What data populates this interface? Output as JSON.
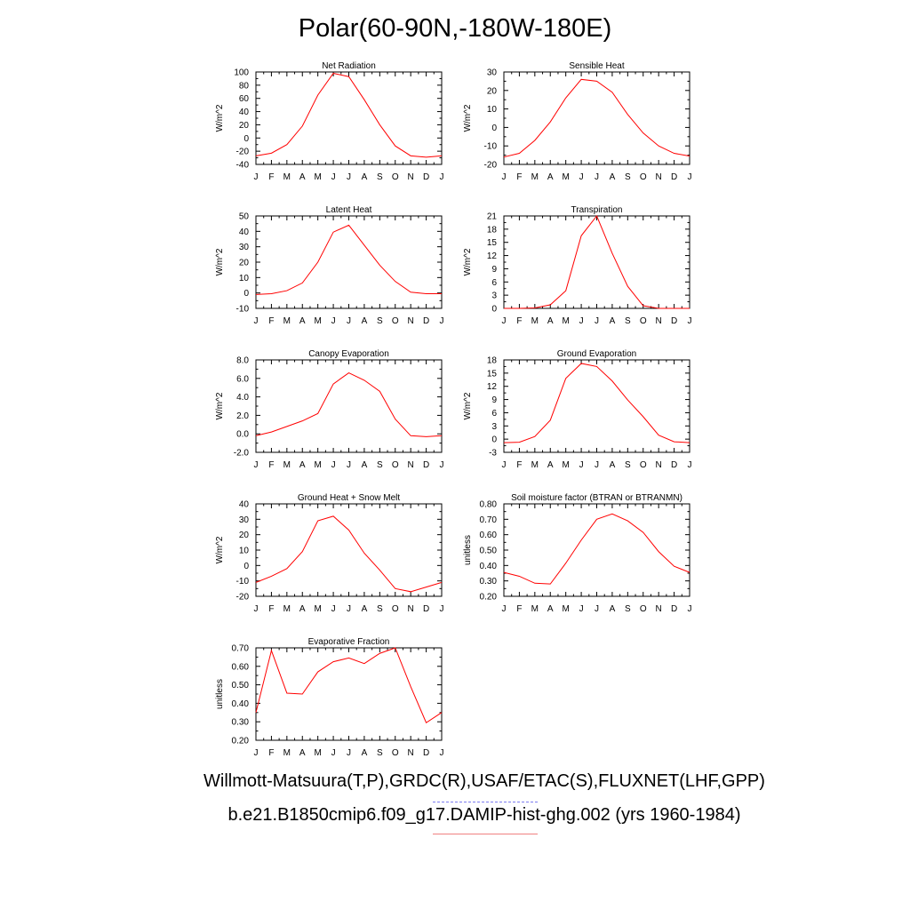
{
  "page": {
    "title": "Polar(60-90N,-180W-180E)",
    "legend_text": "Willmott-Matsuura(T,P),GRDC(R),USAF/ETAC(S),FLUXNET(LHF,GPP)",
    "case_text": "b.e21.B1850cmip6.f09_g17.DAMIP-hist-ghg.002 (yrs 1960-1984)",
    "obs_line_color": "#7d7df0",
    "model_line_color": "#f08080"
  },
  "chart_data": [
    {
      "type": "line",
      "title": "Net Radiation",
      "ylabel": "W/m^2",
      "categories": [
        "J",
        "F",
        "M",
        "A",
        "M",
        "J",
        "J",
        "A",
        "S",
        "O",
        "N",
        "D",
        "J"
      ],
      "yticks": [
        "-40",
        "-20",
        "0",
        "20",
        "40",
        "60",
        "80",
        "100"
      ],
      "ylim": [
        -40,
        100
      ],
      "ytick_step": 20,
      "series": [
        {
          "color": "#ff0000",
          "values": [
            -27,
            -23,
            -10,
            18,
            65,
            98,
            93,
            58,
            20,
            -12,
            -27,
            -29,
            -27
          ]
        }
      ]
    },
    {
      "type": "line",
      "title": "Sensible Heat",
      "ylabel": "W/m^2",
      "categories": [
        "J",
        "F",
        "M",
        "A",
        "M",
        "J",
        "J",
        "A",
        "S",
        "O",
        "N",
        "D",
        "J"
      ],
      "yticks": [
        "-20",
        "-10",
        "0",
        "10",
        "20",
        "30"
      ],
      "ylim": [
        -20,
        30
      ],
      "ytick_step": 10,
      "series": [
        {
          "color": "#ff0000",
          "values": [
            -16,
            -14,
            -7,
            3,
            16,
            26,
            25,
            19,
            7,
            -3,
            -10,
            -14,
            -15.5
          ]
        }
      ]
    },
    {
      "type": "line",
      "title": "Latent Heat",
      "ylabel": "W/m^2",
      "categories": [
        "J",
        "F",
        "M",
        "A",
        "M",
        "J",
        "J",
        "A",
        "S",
        "O",
        "N",
        "D",
        "J"
      ],
      "yticks": [
        "-10",
        "0",
        "10",
        "20",
        "30",
        "40",
        "50"
      ],
      "ylim": [
        -10,
        50
      ],
      "ytick_step": 10,
      "series": [
        {
          "color": "#ff0000",
          "values": [
            -1,
            -0.5,
            1.5,
            6.5,
            20,
            39.5,
            44,
            31,
            18,
            7.5,
            0.5,
            -0.5,
            -0.5
          ]
        }
      ]
    },
    {
      "type": "line",
      "title": "Transpiration",
      "ylabel": "W/m^2",
      "categories": [
        "J",
        "F",
        "M",
        "A",
        "M",
        "J",
        "J",
        "A",
        "S",
        "O",
        "N",
        "D",
        "J"
      ],
      "yticks": [
        "0",
        "3",
        "6",
        "9",
        "12",
        "15",
        "18",
        "21"
      ],
      "ylim": [
        0,
        21
      ],
      "ytick_step": 3,
      "series": [
        {
          "color": "#ff0000",
          "values": [
            0,
            0,
            0.1,
            0.8,
            4,
            16.5,
            21,
            12.5,
            5,
            0.6,
            0,
            0,
            0
          ]
        }
      ]
    },
    {
      "type": "line",
      "title": "Canopy Evaporation",
      "ylabel": "W/m^2",
      "categories": [
        "J",
        "F",
        "M",
        "A",
        "M",
        "J",
        "J",
        "A",
        "S",
        "O",
        "N",
        "D",
        "J"
      ],
      "yticks": [
        "-2.0",
        "0.0",
        "2.0",
        "4.0",
        "6.0",
        "8.0"
      ],
      "ylim": [
        -2,
        8
      ],
      "ytick_step": 2,
      "series": [
        {
          "color": "#ff0000",
          "values": [
            -0.2,
            0.2,
            0.8,
            1.4,
            2.2,
            5.4,
            6.6,
            5.8,
            4.6,
            1.6,
            -0.2,
            -0.3,
            -0.2
          ]
        }
      ]
    },
    {
      "type": "line",
      "title": "Ground Evaporation",
      "ylabel": "W/m^2",
      "categories": [
        "J",
        "F",
        "M",
        "A",
        "M",
        "J",
        "J",
        "A",
        "S",
        "O",
        "N",
        "D",
        "J"
      ],
      "yticks": [
        "-3",
        "0",
        "3",
        "6",
        "9",
        "12",
        "15",
        "18"
      ],
      "ylim": [
        -3,
        18
      ],
      "ytick_step": 3,
      "series": [
        {
          "color": "#ff0000",
          "values": [
            -0.8,
            -0.7,
            0.6,
            4.3,
            13.8,
            17.2,
            16.5,
            13.2,
            8.9,
            5.1,
            0.9,
            -0.6,
            -0.8
          ]
        }
      ]
    },
    {
      "type": "line",
      "title": "Ground Heat + Snow Melt",
      "ylabel": "W/m^2",
      "categories": [
        "J",
        "F",
        "M",
        "A",
        "M",
        "J",
        "J",
        "A",
        "S",
        "O",
        "N",
        "D",
        "J"
      ],
      "yticks": [
        "-20",
        "-10",
        "0",
        "10",
        "20",
        "30",
        "40"
      ],
      "ylim": [
        -20,
        40
      ],
      "ytick_step": 10,
      "series": [
        {
          "color": "#ff0000",
          "values": [
            -11,
            -7,
            -2,
            9,
            29,
            32,
            23,
            8,
            -3,
            -15,
            -17,
            -14,
            -11
          ]
        }
      ]
    },
    {
      "type": "line",
      "title": "Soil moisture factor (BTRAN or BTRANMN)",
      "ylabel": "unitless",
      "categories": [
        "J",
        "F",
        "M",
        "A",
        "M",
        "J",
        "J",
        "A",
        "S",
        "O",
        "N",
        "D",
        "J"
      ],
      "yticks": [
        "0.20",
        "0.30",
        "0.40",
        "0.50",
        "0.60",
        "0.70",
        "0.80"
      ],
      "ylim": [
        0.2,
        0.8
      ],
      "ytick_step": 0.1,
      "series": [
        {
          "color": "#ff0000",
          "values": [
            0.355,
            0.33,
            0.285,
            0.28,
            0.415,
            0.565,
            0.7,
            0.735,
            0.69,
            0.615,
            0.49,
            0.395,
            0.355
          ]
        }
      ]
    },
    {
      "type": "line",
      "title": "Evaporative Fraction",
      "ylabel": "unitless",
      "categories": [
        "J",
        "F",
        "M",
        "A",
        "M",
        "J",
        "J",
        "A",
        "S",
        "O",
        "N",
        "D",
        "J"
      ],
      "yticks": [
        "0.20",
        "0.30",
        "0.40",
        "0.50",
        "0.60",
        "0.70"
      ],
      "ylim": [
        0.2,
        0.7
      ],
      "ytick_step": 0.1,
      "series": [
        {
          "color": "#ff0000",
          "values": [
            0.35,
            0.685,
            0.455,
            0.45,
            0.57,
            0.625,
            0.645,
            0.615,
            0.67,
            0.7,
            0.49,
            0.295,
            0.35
          ]
        }
      ]
    }
  ]
}
